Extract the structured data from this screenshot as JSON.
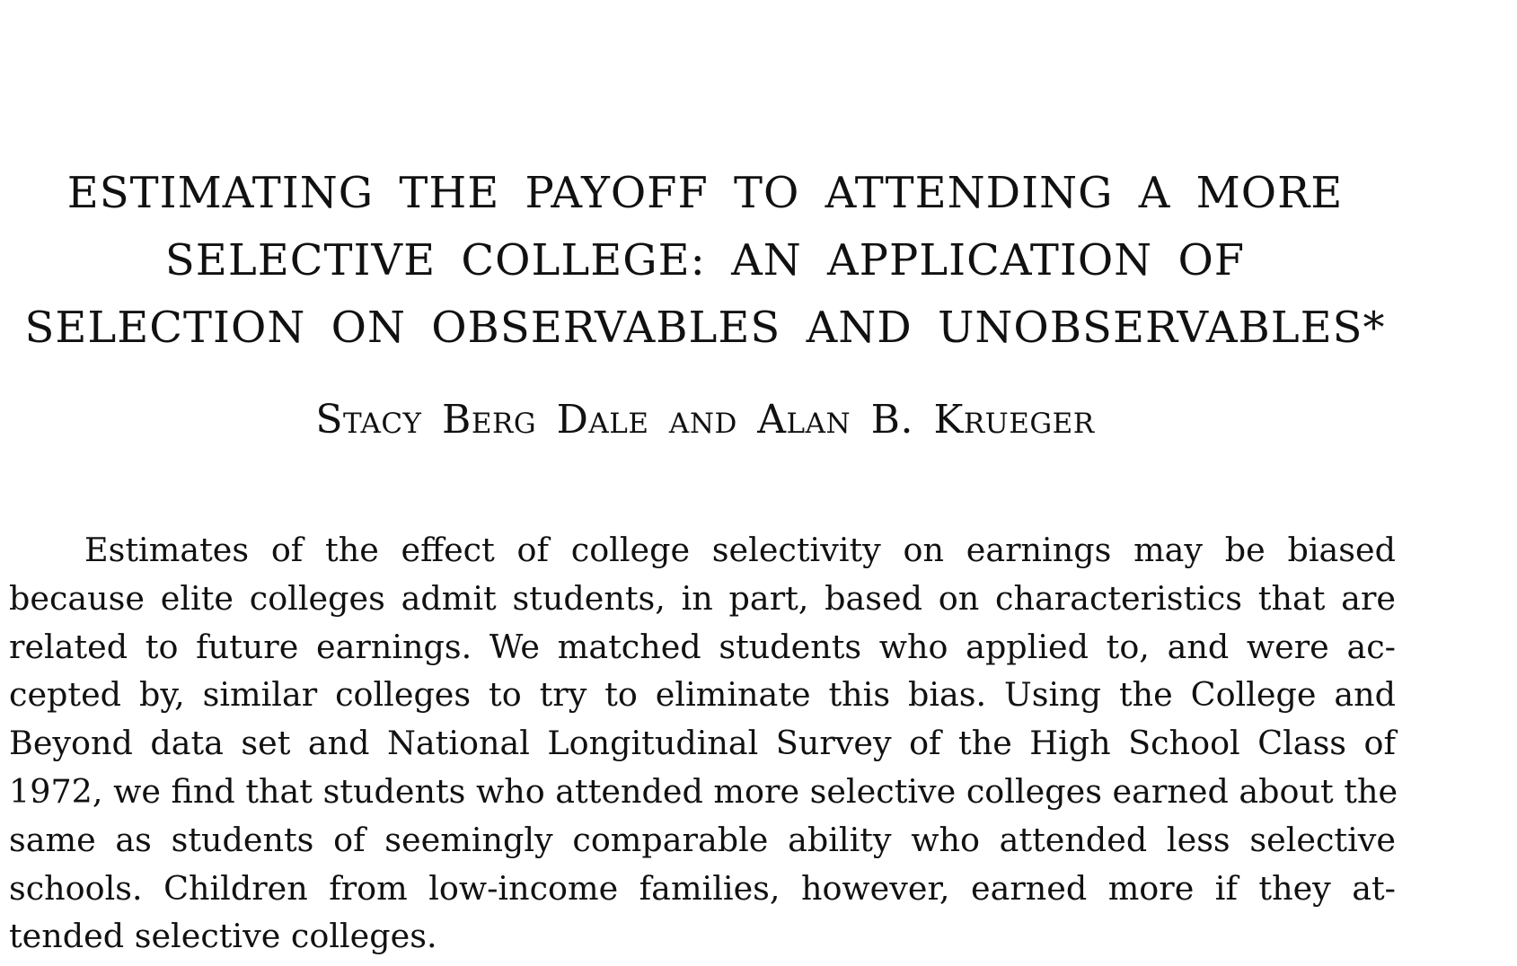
{
  "title_lines": [
    "ESTIMATING THE PAYOFF TO ATTENDING A MORE",
    "SELECTIVE COLLEGE: AN APPLICATION OF",
    "SELECTION ON OBSERVABLES AND UNOBSERVABLES*"
  ],
  "authors": "Stacy Berg Dale and Alan B. Krueger",
  "abstract_lines": [
    "Estimates of the effect of college selectivity on earnings may be biased",
    "because elite colleges admit students, in part, based on characteristics that are",
    "related to future earnings. We matched students who applied to, and were ac-",
    "cepted by, similar colleges to try to eliminate this bias. Using the College and",
    "Beyond data set and National Longitudinal Survey of the High School Class of",
    "1972, we find that students who attended more selective colleges earned about the",
    "same as students of seemingly comparable ability who attended less selective",
    "schools. Children from low-income families, however, earned more if they at-",
    "tended selective colleges."
  ]
}
